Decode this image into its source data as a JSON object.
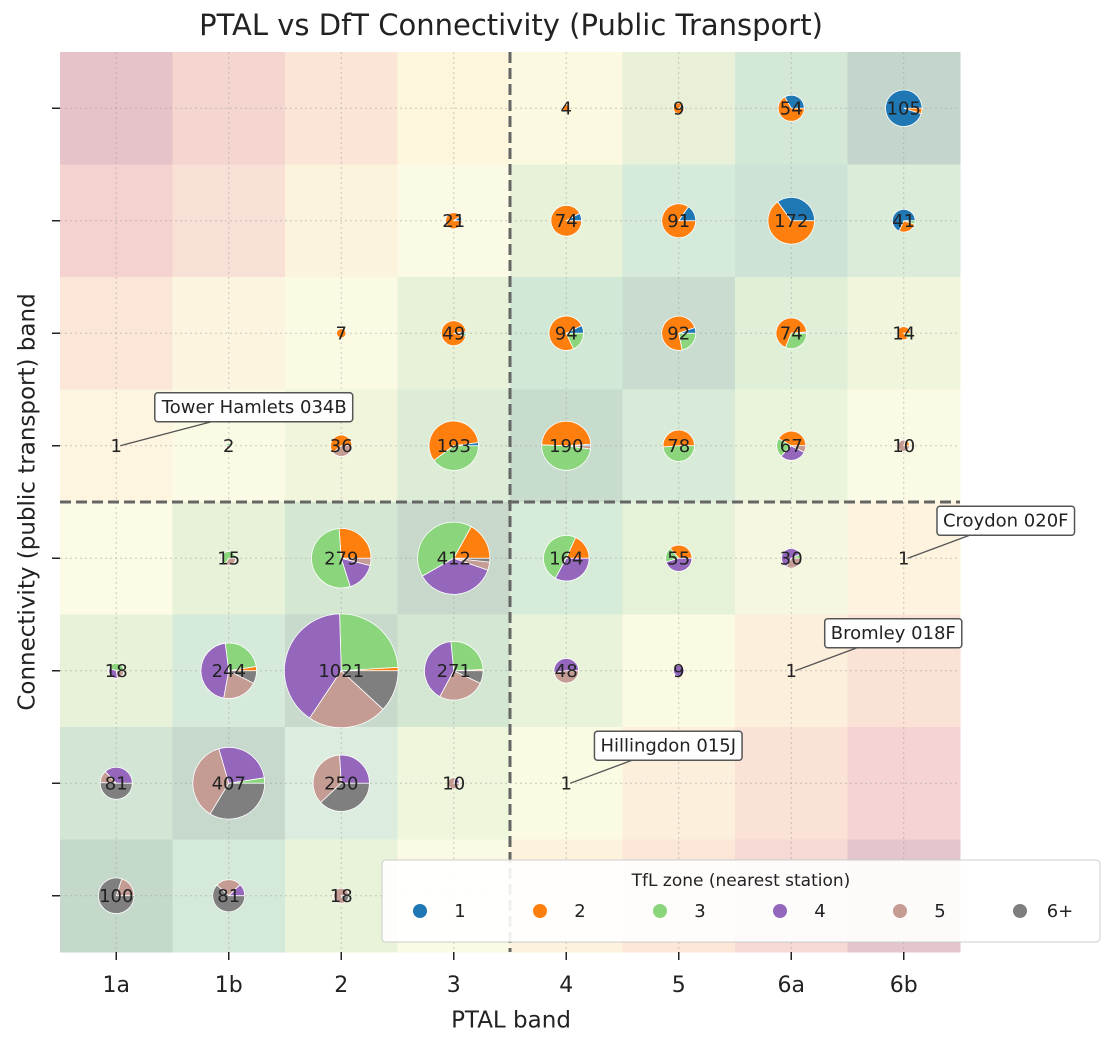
{
  "chart_data": {
    "type": "pie_grid",
    "title": "PTAL vs DfT Connectivity (Public Transport)",
    "x_label": "PTAL band",
    "y_label": "Connectivity (public transport) band",
    "categories": [
      "1a",
      "1b",
      "2",
      "3",
      "4",
      "5",
      "6a",
      "6b"
    ],
    "y_categories": [
      null,
      null,
      null,
      null,
      null,
      null,
      null,
      null
    ],
    "grid": true,
    "x_divider": 3.5,
    "y_divider": 3.5,
    "legend_title": "TfL zone (nearest station)",
    "legend_position": "lower right",
    "zones": [
      {
        "name": "1",
        "color": "#1f77b4"
      },
      {
        "name": "2",
        "color": "#ff7f0e"
      },
      {
        "name": "3",
        "color": "#8bd67d"
      },
      {
        "name": "4",
        "color": "#9467bd"
      },
      {
        "name": "5",
        "color": "#c49c94"
      },
      {
        "name": "6+",
        "color": "#7f7f7f"
      }
    ],
    "background_colors": [
      [
        "#e6c3c9",
        "#f5d5cf",
        "#fae5d6",
        "#fdf5dc",
        "#fbf9e0",
        "#e8f1d8",
        "#d3e8d6",
        "#c4d6cc"
      ],
      [
        "#f4d2d0",
        "#f8e0d6",
        "#fcf3dd",
        "#fbfae4",
        "#e8f2d8",
        "#d5eadb",
        "#cde3d6",
        "#dbecd8"
      ],
      [
        "#fbe6d8",
        "#fbf5df",
        "#fbfbe4",
        "#e8f2d8",
        "#d2e8d6",
        "#c9dccf",
        "#dfefd8",
        "#f0f5dc"
      ],
      [
        "#fdf5df",
        "#fbfae4",
        "#f0f5dc",
        "#dcecd6",
        "#c7dccd",
        "#d8ebd8",
        "#eaf4da",
        "#fbfae4"
      ],
      [
        "#fbfbe6",
        "#e8f2d8",
        "#d3e7d3",
        "#c8d8ca",
        "#d6ebd8",
        "#e6f2d8",
        "#f6f7e0",
        "#fdf3de"
      ],
      [
        "#e8f2d8",
        "#d5eadb",
        "#c7dacb",
        "#d3e7d3",
        "#e8f3d9",
        "#fbfae2",
        "#fcefdb",
        "#fae2d6"
      ],
      [
        "#d3e6d6",
        "#c7d8cc",
        "#dcede0",
        "#eef6dc",
        "#fbfae2",
        "#fcf0dc",
        "#fae2d6",
        "#f4d3d2"
      ],
      [
        "#c5d9cb",
        "#d4e9da",
        "#e8f3d9",
        "#fbfae4",
        "#fdf3dc",
        "#fbe6d8",
        "#f6d8d4",
        "#e4c5cc"
      ]
    ],
    "cells": [
      {
        "x": "4",
        "row": 0,
        "value": 4,
        "zone_values": [
          0,
          4,
          0,
          0,
          0,
          0
        ]
      },
      {
        "x": "5",
        "row": 0,
        "value": 9,
        "zone_values": [
          1,
          8,
          0,
          0,
          0,
          0
        ]
      },
      {
        "x": "6a",
        "row": 0,
        "value": 54,
        "zone_values": [
          18,
          36,
          0,
          0,
          0,
          0
        ]
      },
      {
        "x": "6b",
        "row": 0,
        "value": 105,
        "zone_values": [
          100,
          5,
          0,
          0,
          0,
          0
        ]
      },
      {
        "x": "3",
        "row": 1,
        "value": 21,
        "zone_values": [
          2,
          19,
          0,
          0,
          0,
          0
        ]
      },
      {
        "x": "4",
        "row": 1,
        "value": 74,
        "zone_values": [
          6,
          68,
          0,
          0,
          0,
          0
        ]
      },
      {
        "x": "5",
        "row": 1,
        "value": 91,
        "zone_values": [
          14,
          77,
          0,
          0,
          0,
          0
        ]
      },
      {
        "x": "6a",
        "row": 1,
        "value": 172,
        "zone_values": [
          60,
          112,
          0,
          0,
          0,
          0
        ]
      },
      {
        "x": "6b",
        "row": 1,
        "value": 41,
        "zone_values": [
          28,
          11,
          2,
          0,
          0,
          0
        ]
      },
      {
        "x": "2",
        "row": 2,
        "value": 7,
        "zone_values": [
          0,
          7,
          0,
          0,
          0,
          0
        ]
      },
      {
        "x": "3",
        "row": 2,
        "value": 49,
        "zone_values": [
          1,
          46,
          2,
          0,
          0,
          0
        ]
      },
      {
        "x": "4",
        "row": 2,
        "value": 94,
        "zone_values": [
          7,
          70,
          17,
          0,
          0,
          0
        ]
      },
      {
        "x": "5",
        "row": 2,
        "value": 92,
        "zone_values": [
          5,
          67,
          20,
          0,
          0,
          0
        ]
      },
      {
        "x": "6a",
        "row": 2,
        "value": 74,
        "zone_values": [
          1,
          50,
          23,
          0,
          0,
          0
        ]
      },
      {
        "x": "6b",
        "row": 2,
        "value": 14,
        "zone_values": [
          0,
          12,
          2,
          0,
          0,
          0
        ]
      },
      {
        "x": "1a",
        "row": 3,
        "value": 1,
        "zone_values": [
          0,
          0,
          0,
          0,
          1,
          0
        ]
      },
      {
        "x": "1b",
        "row": 3,
        "value": 2,
        "zone_values": [
          0,
          0,
          1,
          0,
          1,
          0
        ]
      },
      {
        "x": "2",
        "row": 3,
        "value": 36,
        "zone_values": [
          0,
          22,
          0,
          0,
          14,
          0
        ]
      },
      {
        "x": "3",
        "row": 3,
        "value": 193,
        "zone_values": [
          4,
          112,
          77,
          0,
          0,
          0
        ]
      },
      {
        "x": "4",
        "row": 3,
        "value": 190,
        "zone_values": [
          2,
          92,
          92,
          0,
          4,
          0
        ]
      },
      {
        "x": "5",
        "row": 3,
        "value": 78,
        "zone_values": [
          0,
          40,
          38,
          0,
          0,
          0
        ]
      },
      {
        "x": "6a",
        "row": 3,
        "value": 67,
        "zone_values": [
          0,
          28,
          14,
          20,
          5,
          0
        ]
      },
      {
        "x": "6b",
        "row": 3,
        "value": 10,
        "zone_values": [
          0,
          2,
          0,
          0,
          8,
          0
        ]
      },
      {
        "x": "1b",
        "row": 4,
        "value": 15,
        "zone_values": [
          0,
          0,
          10,
          0,
          5,
          0
        ]
      },
      {
        "x": "2",
        "row": 4,
        "value": 279,
        "zone_values": [
          0,
          73,
          150,
          45,
          11,
          0
        ]
      },
      {
        "x": "3",
        "row": 4,
        "value": 412,
        "zone_values": [
          0,
          70,
          170,
          150,
          15,
          7
        ]
      },
      {
        "x": "4",
        "row": 4,
        "value": 164,
        "zone_values": [
          0,
          30,
          80,
          54,
          0,
          0
        ]
      },
      {
        "x": "5",
        "row": 4,
        "value": 55,
        "zone_values": [
          0,
          20,
          10,
          25,
          0,
          0
        ]
      },
      {
        "x": "6a",
        "row": 4,
        "value": 30,
        "zone_values": [
          0,
          0,
          2,
          18,
          10,
          0
        ]
      },
      {
        "x": "6b",
        "row": 4,
        "value": 1,
        "zone_values": [
          0,
          0,
          0,
          0,
          1,
          0
        ]
      },
      {
        "x": "1a",
        "row": 5,
        "value": 18,
        "zone_values": [
          0,
          0,
          8,
          6,
          4,
          0
        ]
      },
      {
        "x": "1b",
        "row": 5,
        "value": 244,
        "zone_values": [
          0,
          6,
          60,
          110,
          50,
          18
        ]
      },
      {
        "x": "2",
        "row": 5,
        "value": 1021,
        "zone_values": [
          0,
          10,
          250,
          410,
          230,
          121
        ]
      },
      {
        "x": "3",
        "row": 5,
        "value": 271,
        "zone_values": [
          0,
          2,
          70,
          110,
          70,
          19
        ]
      },
      {
        "x": "4",
        "row": 5,
        "value": 48,
        "zone_values": [
          0,
          0,
          0,
          25,
          23,
          0
        ]
      },
      {
        "x": "5",
        "row": 5,
        "value": 9,
        "zone_values": [
          0,
          0,
          0,
          9,
          0,
          0
        ]
      },
      {
        "x": "6a",
        "row": 5,
        "value": 1,
        "zone_values": [
          0,
          0,
          0,
          0,
          1,
          0
        ]
      },
      {
        "x": "1a",
        "row": 6,
        "value": 81,
        "zone_values": [
          0,
          0,
          0,
          30,
          10,
          41
        ]
      },
      {
        "x": "1b",
        "row": 6,
        "value": 407,
        "zone_values": [
          0,
          0,
          10,
          110,
          150,
          137
        ]
      },
      {
        "x": "2",
        "row": 6,
        "value": 250,
        "zone_values": [
          0,
          0,
          0,
          65,
          90,
          95
        ]
      },
      {
        "x": "3",
        "row": 6,
        "value": 10,
        "zone_values": [
          0,
          0,
          0,
          2,
          8,
          0
        ]
      },
      {
        "x": "4",
        "row": 6,
        "value": 1,
        "zone_values": [
          0,
          0,
          0,
          0,
          1,
          0
        ]
      },
      {
        "x": "1a",
        "row": 7,
        "value": 100,
        "zone_values": [
          0,
          0,
          0,
          0,
          20,
          80
        ]
      },
      {
        "x": "1b",
        "row": 7,
        "value": 81,
        "zone_values": [
          0,
          0,
          0,
          10,
          21,
          50
        ]
      },
      {
        "x": "2",
        "row": 7,
        "value": 18,
        "zone_values": [
          0,
          0,
          0,
          0,
          15,
          3
        ]
      }
    ],
    "annotations": [
      {
        "text": "Tower Hamlets 034B",
        "x": "1a",
        "row": 3
      },
      {
        "text": "Croydon 020F",
        "x": "6b",
        "row": 4
      },
      {
        "text": "Bromley 018F",
        "x": "6a",
        "row": 5
      },
      {
        "text": "Hillingdon 015J",
        "x": "4",
        "row": 6
      }
    ]
  }
}
